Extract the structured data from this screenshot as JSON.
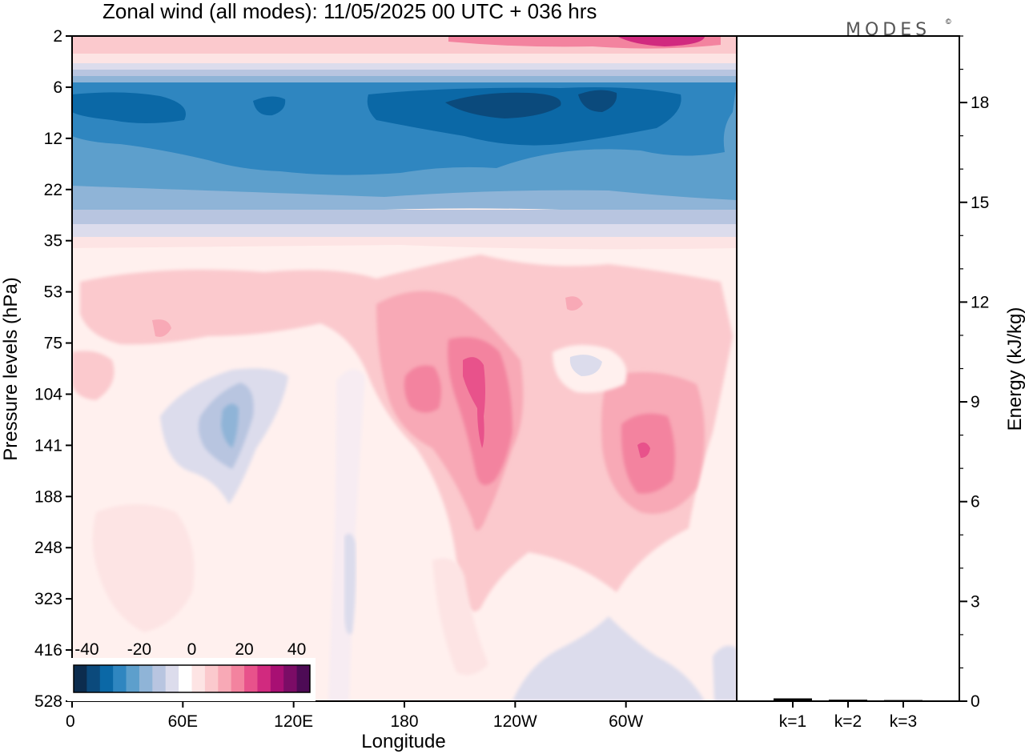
{
  "title": "Zonal wind (all modes):  11/05/2025  00 UTC  + 036 hrs",
  "logo": "MODES",
  "logo_mark": "©",
  "chart_data": [
    {
      "type": "heatmap",
      "title": "Zonal wind (all modes):  11/05/2025  00 UTC  + 036 hrs",
      "xlabel": "Longitude",
      "ylabel": "Pressure levels (hPa)",
      "x_ticks": [
        "0",
        "60E",
        "120E",
        "180",
        "120W",
        "60W"
      ],
      "y_ticks": [
        "2",
        "6",
        "12",
        "22",
        "35",
        "53",
        "75",
        "104",
        "141",
        "188",
        "248",
        "323",
        "416",
        "528"
      ],
      "y_scale": "log (pressure, top = 2 hPa)",
      "colorbar": {
        "tick_labels": [
          "-40",
          "-20",
          "0",
          "20",
          "40"
        ],
        "levels": [
          -40,
          -35,
          -30,
          -25,
          -20,
          -15,
          -10,
          -5,
          0,
          5,
          10,
          15,
          20,
          25,
          30,
          35,
          40
        ],
        "colors": [
          "#0c2c4e",
          "#0b4a7c",
          "#0b68a6",
          "#2f86c0",
          "#5d9fcc",
          "#8fb4d7",
          "#b8c5e0",
          "#dcdcec",
          "#ffffff",
          "#fde4e4",
          "#fbc9cd",
          "#f8a9b6",
          "#f3839f",
          "#e8528b",
          "#d12a7f",
          "#a80f73",
          "#7b0c66",
          "#4d0b55"
        ],
        "placement": "bottom-left"
      },
      "features": [
        {
          "label": "easterly jet",
          "pressure_range": [
            6,
            22
          ],
          "longitude_range": [
            "0",
            "360"
          ],
          "value_min": -35
        },
        {
          "label": "westerly band",
          "pressure": 2,
          "longitude_range": [
            "60W",
            "30W"
          ],
          "value_max": 30
        },
        {
          "label": "westerly maximum",
          "pressure_range": [
            75,
            188
          ],
          "longitude": "150W",
          "value_max": 25
        },
        {
          "label": "westerly maximum",
          "pressure_range": [
            104,
            188
          ],
          "longitude": "60W",
          "value_max": 25
        },
        {
          "label": "weak easterlies",
          "pressure_range": [
            104,
            188
          ],
          "longitude": "90E",
          "value_min": -10
        }
      ]
    },
    {
      "type": "bar",
      "ylabel": "Energy (kJ/kg)",
      "categories": [
        "k=1",
        "k=2",
        "k=3"
      ],
      "values": [
        0.06,
        0.02,
        0.01
      ],
      "ylim": [
        0,
        20
      ],
      "y_ticks": [
        "0",
        "3",
        "6",
        "9",
        "12",
        "15",
        "18"
      ]
    }
  ]
}
